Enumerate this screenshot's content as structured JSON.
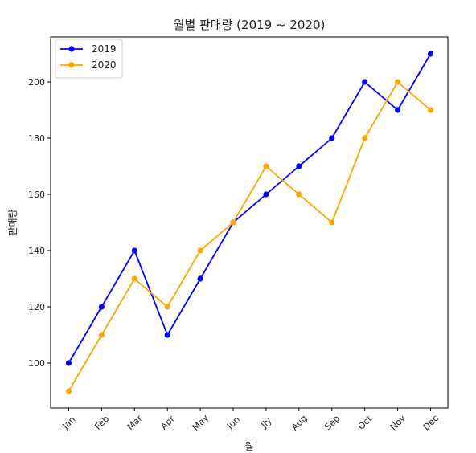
{
  "chart_data": {
    "type": "line",
    "title": "월별 판매량 (2019 ~ 2020)",
    "xlabel": "월",
    "ylabel": "판매량",
    "categories": [
      "Jan",
      "Feb",
      "Mar",
      "Apr",
      "May",
      "Jun",
      "Jly",
      "Aug",
      "Sep",
      "Oct",
      "Nov",
      "Dec"
    ],
    "series": [
      {
        "name": "2019",
        "color": "#0000ff",
        "values": [
          100,
          120,
          140,
          110,
          130,
          150,
          160,
          170,
          180,
          200,
          190,
          210
        ]
      },
      {
        "name": "2020",
        "color": "#ffa500",
        "values": [
          90,
          110,
          130,
          120,
          140,
          150,
          170,
          160,
          150,
          180,
          200,
          190
        ]
      }
    ],
    "yticks": [
      100,
      120,
      140,
      160,
      180,
      200
    ],
    "ylim": [
      84,
      216
    ],
    "grid": false,
    "legend_position": "top-left",
    "marker": "circle"
  }
}
